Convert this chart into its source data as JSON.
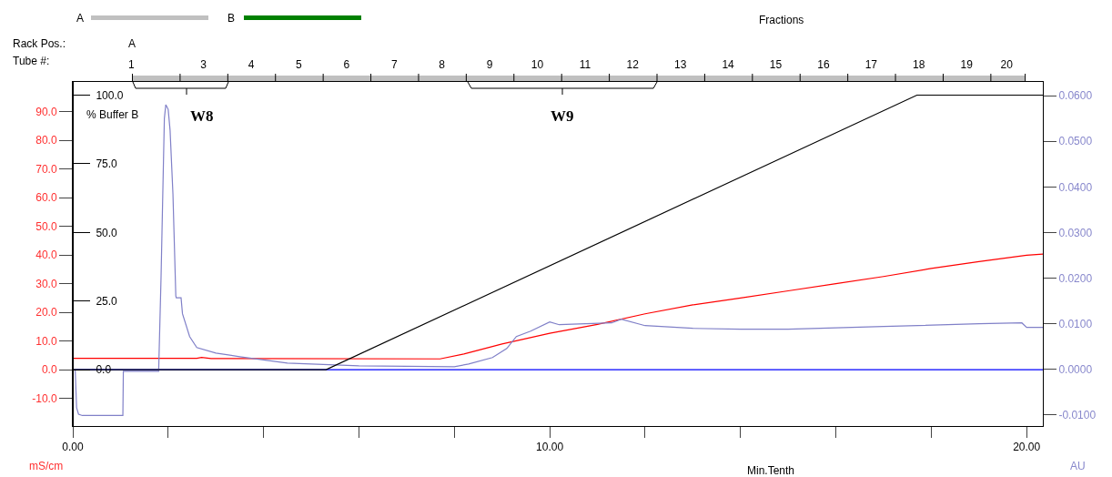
{
  "chart_data": {
    "type": "line",
    "xlabel": "Min.Tenth",
    "ylabel": "mS/cm",
    "y2label": "AU",
    "y3label": "% Buffer B",
    "x2label": "Fractions",
    "annotations": [
      "Rack Pos.:",
      "Tube #:",
      "A",
      "W8",
      "W9",
      "A",
      "B"
    ],
    "xlim": [
      0,
      20.34
    ],
    "xticks": [
      {
        "value": 0,
        "label": "0.00"
      },
      {
        "value": 2,
        "label": null
      },
      {
        "value": 4,
        "label": null
      },
      {
        "value": 6,
        "label": null
      },
      {
        "value": 8,
        "label": null
      },
      {
        "value": 10,
        "label": "10.00"
      },
      {
        "value": 12,
        "label": null
      },
      {
        "value": 14,
        "label": null
      },
      {
        "value": 16,
        "label": null
      },
      {
        "value": 18,
        "label": null
      },
      {
        "value": 20,
        "label": "20.00"
      }
    ],
    "x2lim": [
      0,
      20.34
    ],
    "x2ticks": [
      {
        "value": 1.25,
        "label": null
      },
      {
        "value": 2.25,
        "label": null
      },
      {
        "value": 3.25,
        "label": null
      },
      {
        "value": 4.25,
        "label": null
      },
      {
        "value": 5.25,
        "label": null
      },
      {
        "value": 6.25,
        "label": null
      },
      {
        "value": 7.25,
        "label": null
      },
      {
        "value": 8.25,
        "label": null
      },
      {
        "value": 9.25,
        "label": null
      },
      {
        "value": 10.25,
        "label": null
      },
      {
        "value": 11.25,
        "label": null
      },
      {
        "value": 12.25,
        "label": null
      },
      {
        "value": 13.25,
        "label": null
      },
      {
        "value": 14.25,
        "label": null
      },
      {
        "value": 15.25,
        "label": null
      },
      {
        "value": 16.25,
        "label": null
      },
      {
        "value": 17.25,
        "label": null
      },
      {
        "value": 18.25,
        "label": null
      },
      {
        "value": 19.25,
        "label": null
      },
      {
        "value": 19.97,
        "label": null
      },
      {
        "value": 1.23,
        "label": "1"
      },
      {
        "value": 2.74,
        "label": "3"
      },
      {
        "value": 3.74,
        "label": "4"
      },
      {
        "value": 4.74,
        "label": "5"
      },
      {
        "value": 5.74,
        "label": "6"
      },
      {
        "value": 6.74,
        "label": "7"
      },
      {
        "value": 7.74,
        "label": "8"
      },
      {
        "value": 8.74,
        "label": "9"
      },
      {
        "value": 9.74,
        "label": "10"
      },
      {
        "value": 10.74,
        "label": "11"
      },
      {
        "value": 11.74,
        "label": "12"
      },
      {
        "value": 12.74,
        "label": "13"
      },
      {
        "value": 13.74,
        "label": "14"
      },
      {
        "value": 14.74,
        "label": "15"
      },
      {
        "value": 15.74,
        "label": "16"
      },
      {
        "value": 16.74,
        "label": "17"
      },
      {
        "value": 17.74,
        "label": "18"
      },
      {
        "value": 18.74,
        "label": "19"
      },
      {
        "value": 19.58,
        "label": "20"
      }
    ],
    "ylim": [
      -19.6,
      100.3
    ],
    "yticks": [
      {
        "value": -10,
        "label": "-10.0"
      },
      {
        "value": 0,
        "label": "0.0"
      },
      {
        "value": 10,
        "label": "10.0"
      },
      {
        "value": 20,
        "label": "20.0"
      },
      {
        "value": 30,
        "label": "30.0"
      },
      {
        "value": 40,
        "label": "40.0"
      },
      {
        "value": 50,
        "label": "50.0"
      },
      {
        "value": 60,
        "label": "60.0"
      },
      {
        "value": 70,
        "label": "70.0"
      },
      {
        "value": 80,
        "label": "80.0"
      },
      {
        "value": 90,
        "label": "90.0"
      }
    ],
    "y2lim": [
      -0.0124,
      0.063
    ],
    "y2ticks": [
      {
        "value": -0.01,
        "label": "-0.0100"
      },
      {
        "value": 0,
        "label": "0.0000"
      },
      {
        "value": 0.01,
        "label": "0.0100"
      },
      {
        "value": 0.02,
        "label": "0.0200"
      },
      {
        "value": 0.03,
        "label": "0.0300"
      },
      {
        "value": 0.04,
        "label": "0.0400"
      },
      {
        "value": 0.05,
        "label": "0.0500"
      },
      {
        "value": 0.06,
        "label": "0.0600"
      }
    ],
    "y3lim": [
      -20.5,
      104.8
    ],
    "y3ticks": [
      {
        "value": 0,
        "label": "0.0"
      },
      {
        "value": 25,
        "label": "25.0"
      },
      {
        "value": 50,
        "label": "50.0"
      },
      {
        "value": 75,
        "label": "75.0"
      },
      {
        "value": 100,
        "label": "100.0"
      }
    ],
    "series": [
      {
        "color": "#0000ff",
        "x": [
          0,
          20.34
        ],
        "values": [
          0,
          0
        ]
      },
      {
        "color": "#8080c8",
        "axis": "y2",
        "x": [
          0,
          0.05,
          0.08,
          0.12,
          0.2,
          1.05,
          1.06,
          1.8,
          1.85,
          1.92,
          1.95,
          2.0,
          2.04,
          2.1,
          2.16,
          2.17,
          2.27,
          2.3,
          2.45,
          2.6,
          3.0,
          3.5,
          4.5,
          6,
          8,
          8.3,
          8.8,
          9.1,
          9.3,
          9.6,
          10.0,
          10.2,
          11.3,
          11.5,
          12,
          13,
          14,
          15,
          17,
          19,
          19.9,
          20.0,
          20.34
        ],
        "values": [
          0,
          0,
          -0.0084,
          -0.0098,
          -0.0101,
          -0.0101,
          -0.0004,
          -0.0004,
          0.02,
          0.055,
          0.058,
          0.057,
          0.0524,
          0.0384,
          0.0161,
          0.0157,
          0.0157,
          0.0122,
          0.0072,
          0.0048,
          0.0036,
          0.0028,
          0.0014,
          0.0008,
          0.0006,
          0.0012,
          0.0026,
          0.0046,
          0.0072,
          0.0084,
          0.0104,
          0.0098,
          0.0102,
          0.011,
          0.0096,
          0.009,
          0.0088,
          0.0088,
          0.0094,
          0.01,
          0.0102,
          0.0092,
          0.0092
        ]
      },
      {
        "color": "#ff0000",
        "x": [
          0,
          2.6,
          2.7,
          2.9,
          7.7,
          8.2,
          9,
          10,
          11,
          12,
          13,
          14,
          15,
          16,
          17,
          18,
          19,
          20,
          20.34
        ],
        "values": [
          4.0,
          4.0,
          4.3,
          3.9,
          3.8,
          5.5,
          9.0,
          12.7,
          15.8,
          19.5,
          22.6,
          25.0,
          27.5,
          30.0,
          32.5,
          35.3,
          37.7,
          39.9,
          40.3
        ]
      },
      {
        "color": "#000000",
        "axis": "y3",
        "x": [
          0,
          5.31,
          17.7,
          20.34
        ],
        "values": [
          0,
          0,
          100,
          100
        ]
      }
    ],
    "grid": false,
    "marker": "none",
    "line_style": "solid"
  }
}
